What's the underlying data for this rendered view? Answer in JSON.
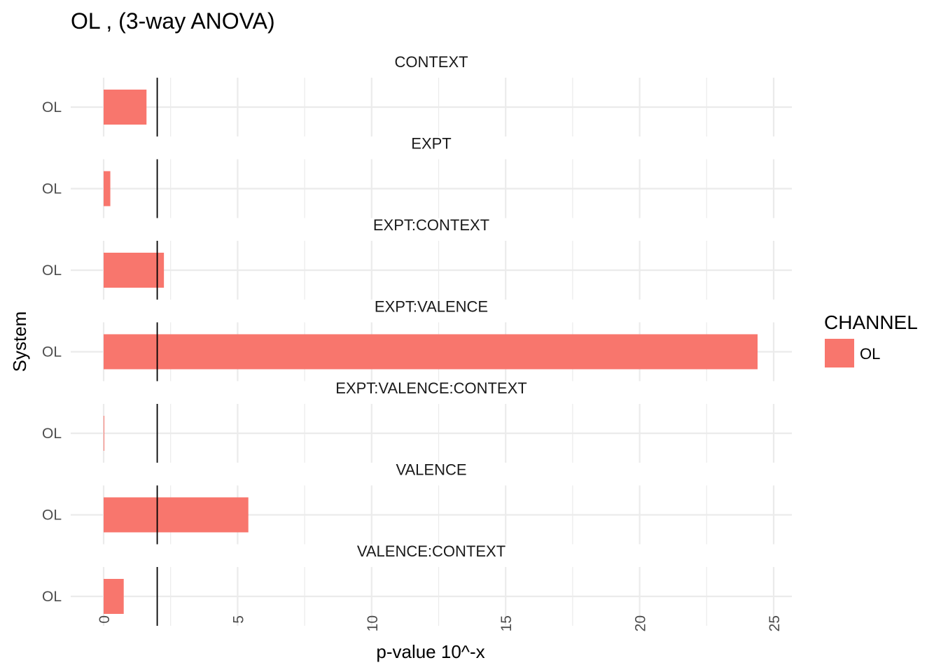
{
  "chart_data": {
    "type": "bar",
    "orientation": "horizontal",
    "faceted": true,
    "title": "OL , (3-way ANOVA)",
    "xlabel": "p-value 10^-x",
    "ylabel": "System",
    "xlim": [
      -0.6,
      25.6
    ],
    "x_ticks": [
      0,
      5,
      10,
      15,
      20,
      25
    ],
    "grid": true,
    "reference_line_x": 2,
    "legend": {
      "title": "CHANNEL",
      "position": "right",
      "items": [
        {
          "label": "OL",
          "color": "#F8766D"
        }
      ]
    },
    "panels": [
      {
        "label": "CONTEXT",
        "category": "OL",
        "value": 1.6
      },
      {
        "label": "EXPT",
        "category": "OL",
        "value": 0.25
      },
      {
        "label": "EXPT:CONTEXT",
        "category": "OL",
        "value": 2.25
      },
      {
        "label": "EXPT:VALENCE",
        "category": "OL",
        "value": 24.4
      },
      {
        "label": "EXPT:VALENCE:CONTEXT",
        "category": "OL",
        "value": 0.02
      },
      {
        "label": "VALENCE",
        "category": "OL",
        "value": 5.4
      },
      {
        "label": "VALENCE:CONTEXT",
        "category": "OL",
        "value": 0.75
      }
    ],
    "colors": {
      "bar": "#F8766D",
      "grid": "#ebebeb",
      "refline": "#000000"
    }
  }
}
